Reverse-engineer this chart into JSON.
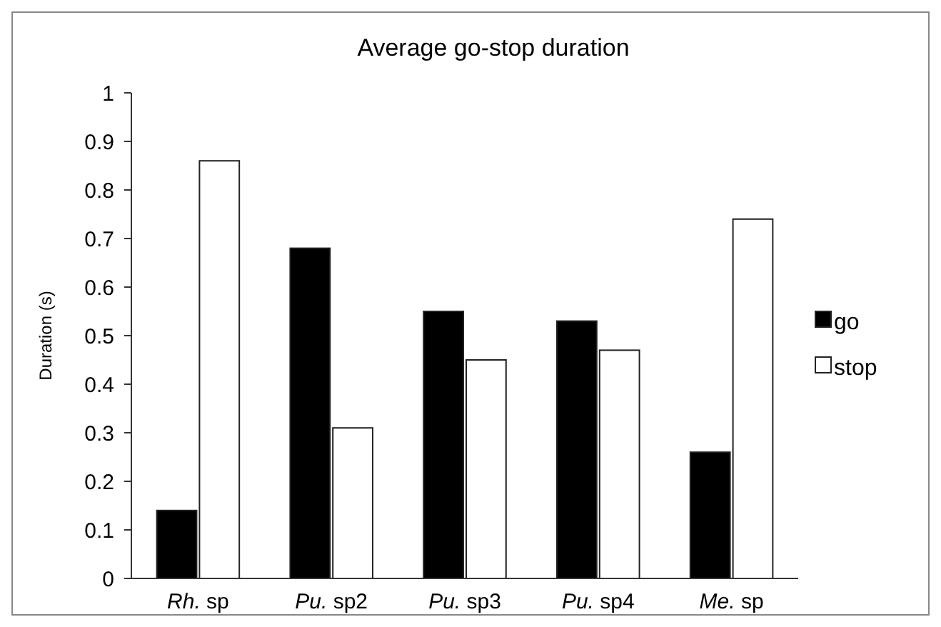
{
  "chart_data": {
    "type": "bar",
    "title": "Average go-stop duration",
    "ylabel": "Duration (s)",
    "categories": [
      "Rh. sp",
      "Pu. sp2",
      "Pu. sp3",
      "Pu. sp4",
      "Me. sp"
    ],
    "series": [
      {
        "name": "go",
        "color": "#000000",
        "values": [
          0.14,
          0.68,
          0.55,
          0.53,
          0.26
        ]
      },
      {
        "name": "stop",
        "color": "#ffffff",
        "values": [
          0.86,
          0.31,
          0.45,
          0.47,
          0.74
        ]
      }
    ],
    "ylim": [
      0,
      1
    ],
    "yticks": [
      0,
      0.1,
      0.2,
      0.3,
      0.4,
      0.5,
      0.6,
      0.7,
      0.8,
      0.9,
      1
    ],
    "grid": false,
    "legend": "right"
  }
}
